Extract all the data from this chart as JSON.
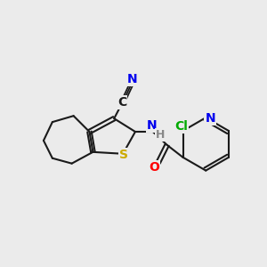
{
  "bg_color": "#ebebeb",
  "bond_color": "#1a1a1a",
  "atom_colors": {
    "N": "#0000ee",
    "S": "#ccaa00",
    "O": "#ff0000",
    "Cl": "#00aa00",
    "C": "#1a1a1a",
    "H": "#888888"
  },
  "figsize": [
    3.0,
    3.0
  ],
  "dpi": 100
}
